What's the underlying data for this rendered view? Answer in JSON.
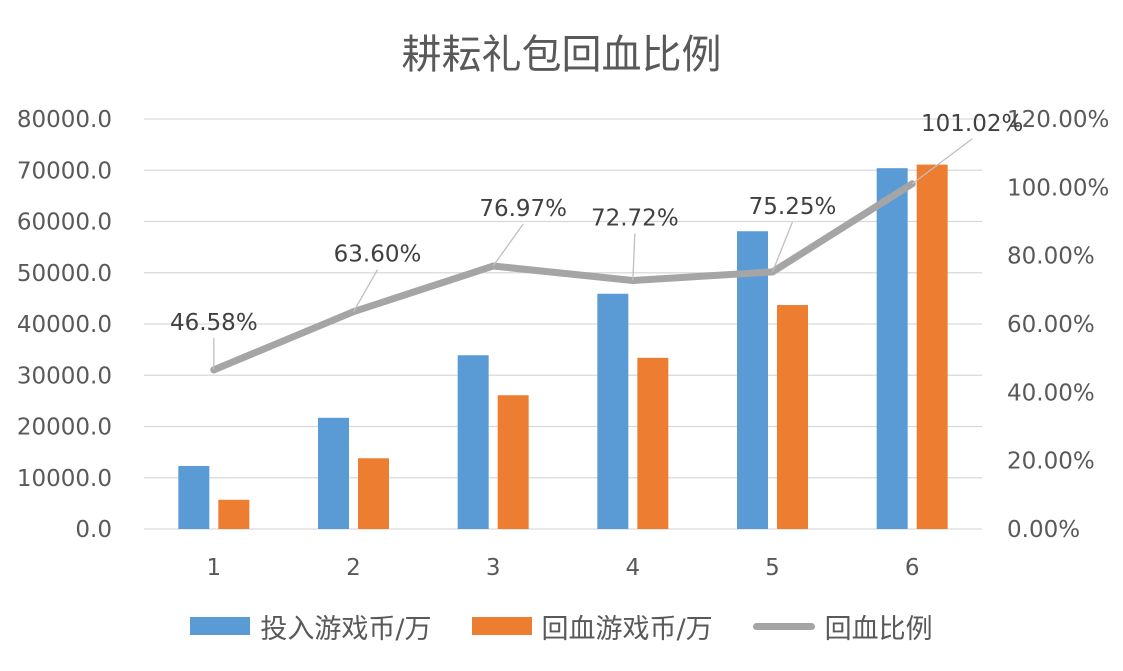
{
  "chart_data": {
    "type": "bar",
    "title": "耕耘礼包回血比例",
    "categories": [
      "1",
      "2",
      "3",
      "4",
      "5",
      "6"
    ],
    "series": [
      {
        "name": "投入游戏币/万",
        "type": "bar",
        "axis": "left",
        "color": "#5B9BD5",
        "values": [
          12300,
          21700,
          33900,
          45900,
          58100,
          70400
        ]
      },
      {
        "name": "回血游戏币/万",
        "type": "bar",
        "axis": "left",
        "color": "#ED7D31",
        "values": [
          5700,
          13800,
          26100,
          33400,
          43700,
          71100
        ]
      },
      {
        "name": "回血比例",
        "type": "line",
        "axis": "right",
        "color": "#A5A5A5",
        "values": [
          46.58,
          63.6,
          76.97,
          72.72,
          75.25,
          101.02
        ],
        "labels": [
          "46.58%",
          "63.60%",
          "76.97%",
          "72.72%",
          "75.25%",
          "101.02%"
        ]
      }
    ],
    "y_left": {
      "ylim": [
        0,
        80000
      ],
      "ticks": [
        "0.0",
        "10000.0",
        "20000.0",
        "30000.0",
        "40000.0",
        "50000.0",
        "60000.0",
        "70000.0",
        "80000.0"
      ]
    },
    "y_right": {
      "ylim": [
        0,
        120
      ],
      "ticks": [
        "0.00%",
        "20.00%",
        "40.00%",
        "60.00%",
        "80.00%",
        "100.00%",
        "120.00%"
      ]
    },
    "grid": true,
    "legend_position": "bottom"
  }
}
